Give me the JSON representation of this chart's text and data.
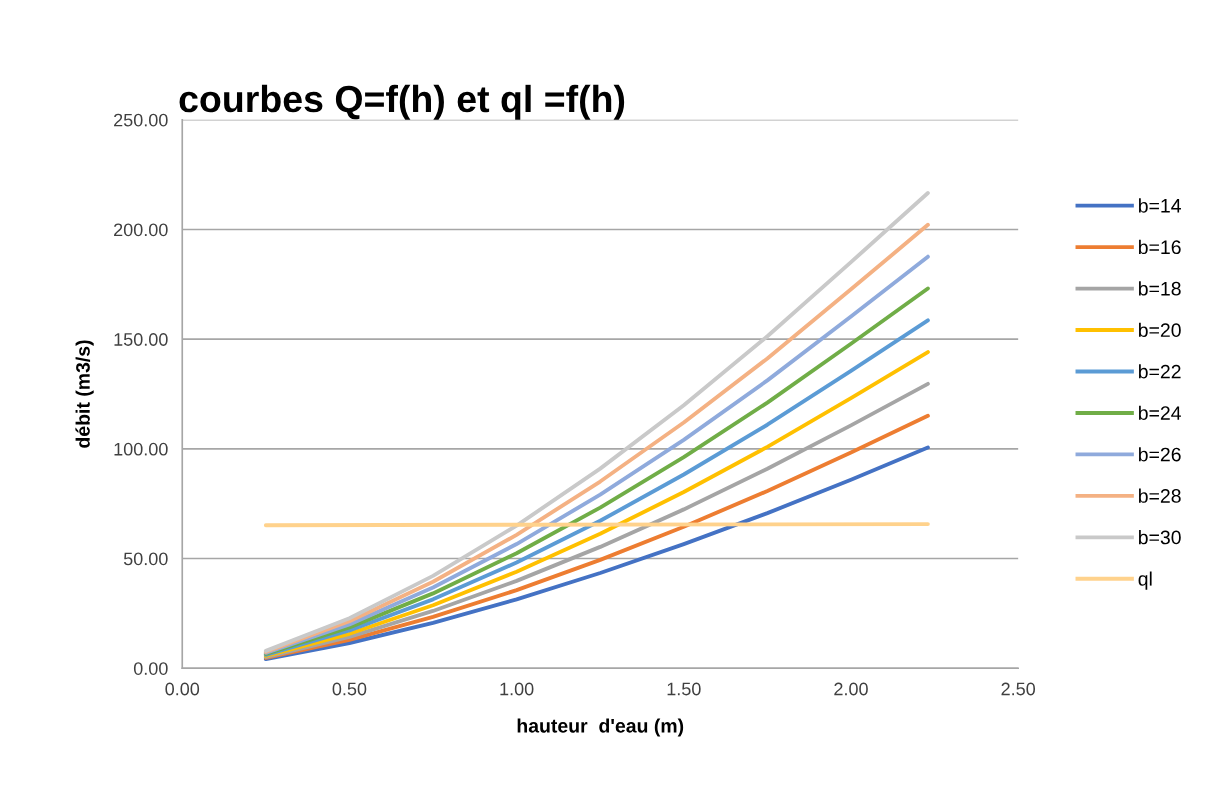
{
  "chart_data": {
    "type": "line",
    "title": "courbes Q=f(h) et ql =f(h)",
    "xlabel": "hauteur  d'eau (m)",
    "ylabel": "débit (m3/s)",
    "x": [
      0.25,
      0.5,
      0.75,
      1.0,
      1.25,
      1.5,
      1.75,
      2.0,
      2.23
    ],
    "series": [
      {
        "name": "b=14",
        "color": "#4472c4",
        "values": [
          4.2,
          11.5,
          20.7,
          31.4,
          43.4,
          56.6,
          70.7,
          85.9,
          100.6
        ]
      },
      {
        "name": "b=16",
        "color": "#ed7d31",
        "values": [
          4.7,
          12.9,
          23.4,
          35.6,
          49.4,
          64.5,
          80.8,
          98.3,
          115.1
        ]
      },
      {
        "name": "b=18",
        "color": "#a5a5a5",
        "values": [
          5.1,
          14.3,
          26.1,
          39.8,
          55.3,
          72.4,
          90.9,
          110.7,
          129.6
        ]
      },
      {
        "name": "b=20",
        "color": "#ffc000",
        "values": [
          5.6,
          15.7,
          28.7,
          44.0,
          61.3,
          80.3,
          100.9,
          123.1,
          144.1
        ]
      },
      {
        "name": "b=22",
        "color": "#5b9bd5",
        "values": [
          6.1,
          17.2,
          31.4,
          48.2,
          67.2,
          88.3,
          111.0,
          135.5,
          158.6
        ]
      },
      {
        "name": "b=24",
        "color": "#70ad47",
        "values": [
          6.5,
          18.6,
          34.1,
          52.4,
          73.2,
          96.2,
          121.1,
          147.9,
          173.1
        ]
      },
      {
        "name": "b=26",
        "color": "#8faadc",
        "values": [
          7.0,
          20.0,
          36.8,
          56.6,
          79.1,
          104.1,
          131.2,
          160.3,
          187.6
        ]
      },
      {
        "name": "b=28",
        "color": "#f4b183",
        "values": [
          7.4,
          21.4,
          39.4,
          60.8,
          85.1,
          112.0,
          141.2,
          172.7,
          202.1
        ]
      },
      {
        "name": "b=30",
        "color": "#c9c9c9",
        "values": [
          7.9,
          22.8,
          42.1,
          65.0,
          91.0,
          119.9,
          151.3,
          185.1,
          216.6
        ]
      },
      {
        "name": "ql",
        "color": "#ffd28c",
        "x": [
          0.25,
          2.23
        ],
        "values": [
          65.2,
          65.7
        ]
      }
    ],
    "xlim": [
      0,
      2.5
    ],
    "ylim": [
      0,
      250
    ],
    "xticks": [
      {
        "value": 0,
        "label": "0.00"
      },
      {
        "value": 0.5,
        "label": "0.50"
      },
      {
        "value": 1.0,
        "label": "1.00"
      },
      {
        "value": 1.5,
        "label": "1.50"
      },
      {
        "value": 2.0,
        "label": "2.00"
      },
      {
        "value": 2.5,
        "label": "2.50"
      }
    ],
    "yticks": [
      {
        "value": 0,
        "label": "0.00"
      },
      {
        "value": 50,
        "label": "50.00"
      },
      {
        "value": 100,
        "label": "100.00"
      },
      {
        "value": 150,
        "label": "150.00"
      },
      {
        "value": 200,
        "label": "200.00"
      },
      {
        "value": 250,
        "label": "250.00"
      }
    ],
    "grid": "y",
    "legend": "right",
    "marker": "none",
    "line_style": "solid"
  }
}
